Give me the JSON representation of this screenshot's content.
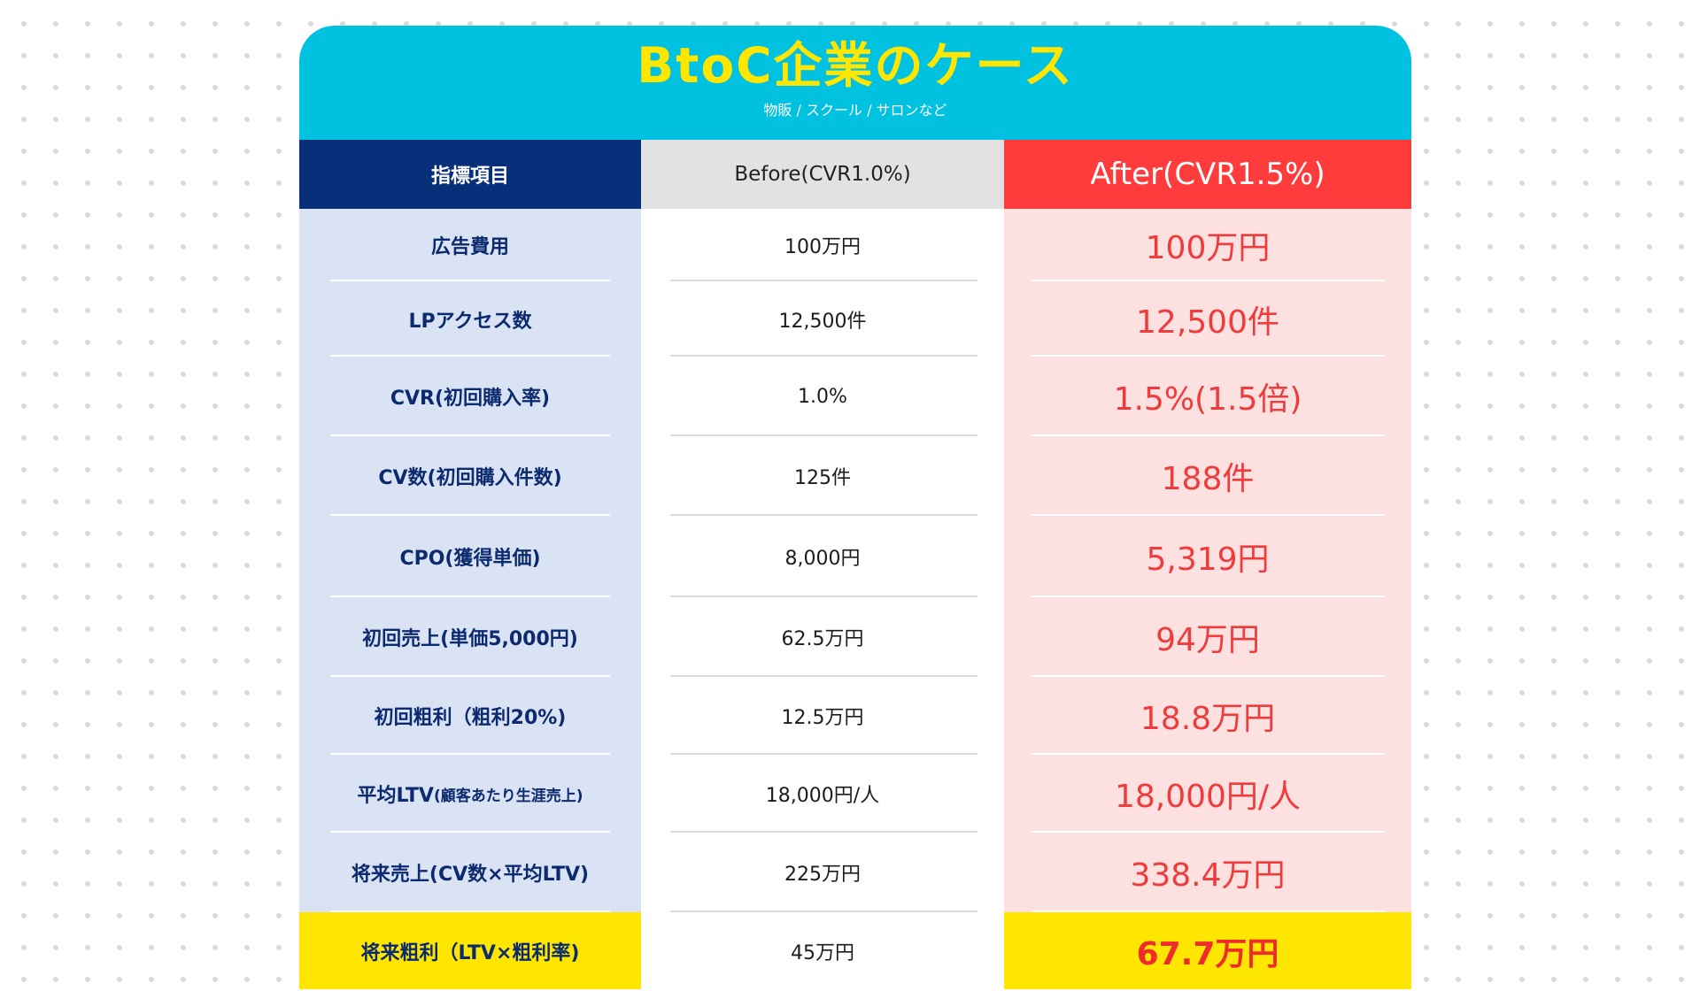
{
  "header": {
    "title": "BtoC企業のケース",
    "subtitle": "物販 / スクール / サロンなど"
  },
  "table": {
    "columns": [
      "指標項目",
      "Before(CVR1.0%)",
      "After(CVR1.5%)"
    ],
    "rows": [
      {
        "label": "広告費用",
        "label_note": "",
        "before": "100万円",
        "after": "100万円"
      },
      {
        "label": "LPアクセス数",
        "label_note": "",
        "before": "12,500件",
        "after": "12,500件"
      },
      {
        "label": "CVR(初回購入率)",
        "label_note": "",
        "before": "1.0%",
        "after": "1.5%(1.5倍)"
      },
      {
        "label": "CV数(初回購入件数)",
        "label_note": "",
        "before": "125件",
        "after": "188件"
      },
      {
        "label": "CPO(獲得単価)",
        "label_note": "",
        "before": "8,000円",
        "after": "5,319円"
      },
      {
        "label": "初回売上(単価5,000円)",
        "label_note": "",
        "before": "62.5万円",
        "after": "94万円"
      },
      {
        "label": "初回粗利（粗利20%)",
        "label_note": "",
        "before": "12.5万円",
        "after": "18.8万円"
      },
      {
        "label": "平均LTV",
        "label_note": "(顧客あたり生涯売上)",
        "before": "18,000円/人",
        "after": "18,000円/人"
      },
      {
        "label": "将来売上(CV数×平均LTV)",
        "label_note": "",
        "before": "225万円",
        "after": "338.4万円"
      },
      {
        "label": "将来粗利（LTV×粗利率)",
        "label_note": "",
        "before": "45万円",
        "after": "67.7万円"
      }
    ]
  },
  "colors": {
    "banner": "#00c2e0",
    "title": "#ffe600",
    "label_header": "#08307a",
    "before_header": "#e2e2e2",
    "after_header": "#ff3b3b",
    "label_column": "#dae3f3",
    "after_column": "#fde0e0",
    "highlight_row": "#ffe600",
    "after_text": "#ef3b3b"
  }
}
